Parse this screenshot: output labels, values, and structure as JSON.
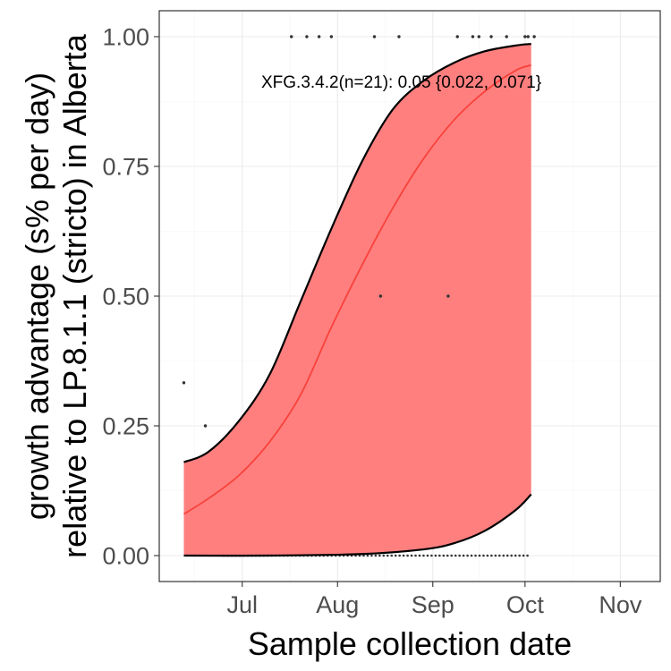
{
  "chart_data": {
    "type": "line",
    "xlabel": "Sample collection date",
    "ylabel_line1": "growth advantage (s% per day)",
    "ylabel_line2": "relative to LP.8.1.1 (stricto) in Alberta",
    "x_ticks": [
      {
        "date": "2025-07-01",
        "label": "Jul"
      },
      {
        "date": "2025-08-01",
        "label": "Aug"
      },
      {
        "date": "2025-09-01",
        "label": "Sep"
      },
      {
        "date": "2025-10-01",
        "label": "Oct"
      },
      {
        "date": "2025-11-01",
        "label": "Nov"
      }
    ],
    "y_ticks": [
      0,
      0.25,
      0.5,
      0.75,
      1
    ],
    "y_tick_labels": [
      "0.00",
      "0.25",
      "0.50",
      "0.75",
      "1.00"
    ],
    "xlim": [
      "2025-06-04",
      "2025-11-14"
    ],
    "ylim": [
      -0.05,
      1.05
    ],
    "grid": true,
    "annotation": "XFG.3.4.2(n=21): 0.05 {0.022, 0.071}",
    "series": [
      {
        "kind": "fit",
        "color": "#f8423a",
        "points": [
          {
            "x": "2025-06-12",
            "y": 0.08
          },
          {
            "x": "2025-06-20",
            "y": 0.11
          },
          {
            "x": "2025-06-30",
            "y": 0.155
          },
          {
            "x": "2025-07-10",
            "y": 0.22
          },
          {
            "x": "2025-07-20",
            "y": 0.31
          },
          {
            "x": "2025-07-30",
            "y": 0.44
          },
          {
            "x": "2025-08-09",
            "y": 0.56
          },
          {
            "x": "2025-08-19",
            "y": 0.67
          },
          {
            "x": "2025-08-29",
            "y": 0.765
          },
          {
            "x": "2025-09-08",
            "y": 0.84
          },
          {
            "x": "2025-09-18",
            "y": 0.895
          },
          {
            "x": "2025-09-28",
            "y": 0.935
          },
          {
            "x": "2025-10-03",
            "y": 0.945
          }
        ]
      },
      {
        "kind": "ci_upper",
        "color": "#000000",
        "points": [
          {
            "x": "2025-06-12",
            "y": 0.18
          },
          {
            "x": "2025-06-20",
            "y": 0.2
          },
          {
            "x": "2025-06-30",
            "y": 0.26
          },
          {
            "x": "2025-07-10",
            "y": 0.35
          },
          {
            "x": "2025-07-20",
            "y": 0.49
          },
          {
            "x": "2025-07-30",
            "y": 0.63
          },
          {
            "x": "2025-08-09",
            "y": 0.76
          },
          {
            "x": "2025-08-19",
            "y": 0.86
          },
          {
            "x": "2025-08-29",
            "y": 0.915
          },
          {
            "x": "2025-09-08",
            "y": 0.95
          },
          {
            "x": "2025-09-18",
            "y": 0.972
          },
          {
            "x": "2025-09-28",
            "y": 0.983
          },
          {
            "x": "2025-10-03",
            "y": 0.986
          }
        ]
      },
      {
        "kind": "ci_lower",
        "color": "#000000",
        "points": [
          {
            "x": "2025-06-12",
            "y": 0.0
          },
          {
            "x": "2025-07-10",
            "y": 0.0
          },
          {
            "x": "2025-08-09",
            "y": 0.003
          },
          {
            "x": "2025-08-29",
            "y": 0.012
          },
          {
            "x": "2025-09-08",
            "y": 0.024
          },
          {
            "x": "2025-09-18",
            "y": 0.048
          },
          {
            "x": "2025-09-28",
            "y": 0.088
          },
          {
            "x": "2025-10-03",
            "y": 0.118
          }
        ]
      }
    ],
    "observations": {
      "color": "#333333",
      "points": [
        {
          "x": "2025-06-12",
          "y": 0.333
        },
        {
          "x": "2025-06-19",
          "y": 0.25
        },
        {
          "x": "2025-08-15",
          "y": 0.5
        },
        {
          "x": "2025-09-06",
          "y": 0.5
        },
        {
          "x": "2025-07-17",
          "y": 1
        },
        {
          "x": "2025-07-22",
          "y": 1
        },
        {
          "x": "2025-07-26",
          "y": 1
        },
        {
          "x": "2025-07-30",
          "y": 1
        },
        {
          "x": "2025-08-13",
          "y": 1
        },
        {
          "x": "2025-08-21",
          "y": 1
        },
        {
          "x": "2025-09-09",
          "y": 1
        },
        {
          "x": "2025-09-14",
          "y": 1
        },
        {
          "x": "2025-09-16",
          "y": 1
        },
        {
          "x": "2025-09-20",
          "y": 1
        },
        {
          "x": "2025-09-25",
          "y": 1
        },
        {
          "x": "2025-10-01",
          "y": 1
        },
        {
          "x": "2025-10-02",
          "y": 1
        },
        {
          "x": "2025-10-04",
          "y": 1
        }
      ],
      "zero_range": [
        "2025-06-25",
        "2025-10-03"
      ]
    }
  }
}
